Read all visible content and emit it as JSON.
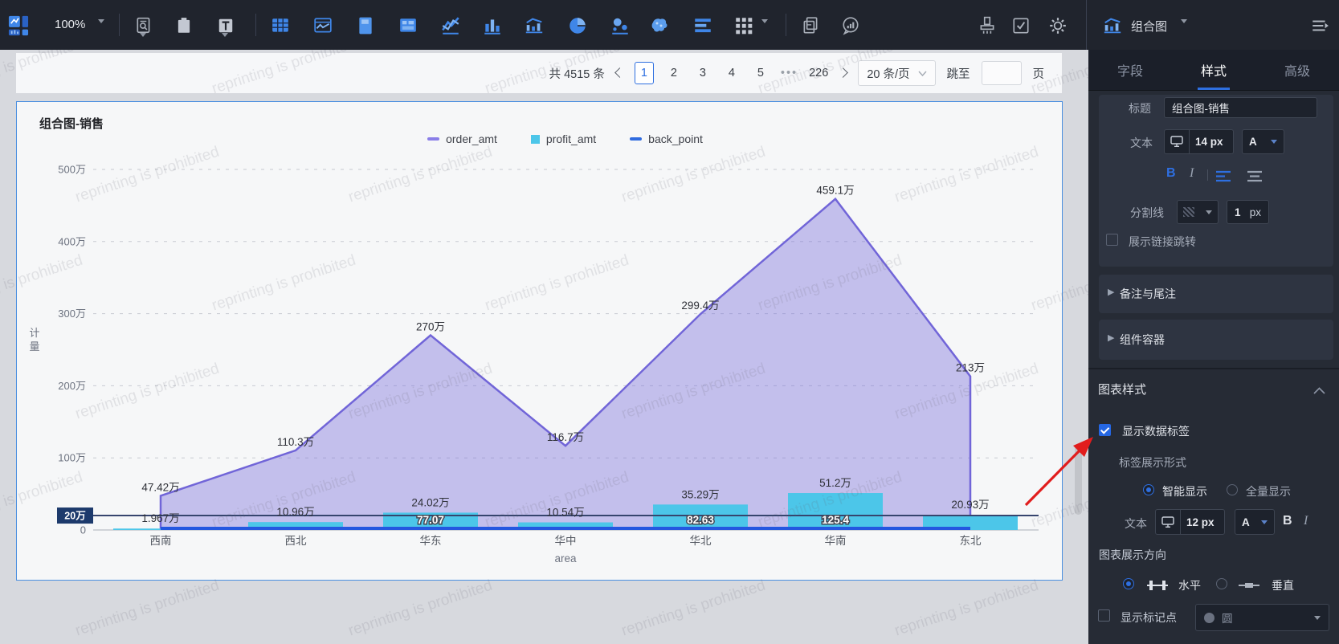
{
  "watermark": {
    "text": "reprinting is prohibited"
  },
  "topbar": {
    "zoom_level": "100%",
    "chart_type_label": "组合图",
    "icons": [
      "app-logo",
      "zoom-dropdown",
      "filter-search",
      "clipboard",
      "text-tool",
      "table",
      "chart-window",
      "page-layout",
      "dashboard",
      "line-chart",
      "bar-chart",
      "combo-chart",
      "combo-chart-alt",
      "pie-chart",
      "scatter-chart",
      "map-chart",
      "list-chart",
      "grid-more",
      "copy-doc",
      "comment",
      "brush",
      "todo-check",
      "gear",
      "chart-type-selector",
      "menu-collapse"
    ]
  },
  "pagination": {
    "total": "共 4515 条",
    "pages": [
      "1",
      "2",
      "3",
      "4",
      "5"
    ],
    "current_page": "1",
    "ellipsis": "•••",
    "last_page": "226",
    "page_size": "20 条/页",
    "jump_label": "跳至",
    "page_unit": "页"
  },
  "chart_data": {
    "type": "combo",
    "title": "组合图-销售",
    "xlabel": "area",
    "ylabel": "计量",
    "categories": [
      "西南",
      "西北",
      "华东",
      "华中",
      "华北",
      "华南",
      "东北"
    ],
    "yticks": [
      {
        "label": "500万",
        "value": 500
      },
      {
        "label": "400万",
        "value": 400
      },
      {
        "label": "300万",
        "value": 300
      },
      {
        "label": "200万",
        "value": 200
      },
      {
        "label": "100万",
        "value": 100
      }
    ],
    "zero_label": "0",
    "ylim_wan": [
      0,
      500
    ],
    "grid": true,
    "legend_position": "top",
    "series": [
      {
        "name": "order_amt",
        "type": "area",
        "color": "#7165d8",
        "fill": "rgba(124,114,220,0.42)",
        "values_wan": [
          47.42,
          110.3,
          270,
          116.7,
          299.4,
          459.1,
          213
        ],
        "labels": [
          "47.42万",
          "110.3万",
          "270万",
          "116.7万",
          "299.4万",
          "459.1万",
          "213万"
        ]
      },
      {
        "name": "profit_amt",
        "type": "bar",
        "color": "#4cc6e9",
        "values_wan": [
          1.967,
          10.96,
          24.02,
          10.54,
          35.29,
          51.2,
          20.93
        ],
        "labels": [
          "1.967万",
          "10.96万",
          "24.02万",
          "10.54万",
          "35.29万",
          "51.2万",
          "20.93万"
        ]
      },
      {
        "name": "back_point",
        "type": "line",
        "color": "#2457e0",
        "values": [
          null,
          null,
          77.07,
          null,
          82.63,
          125.4,
          null
        ],
        "labels": [
          null,
          null,
          "77.07",
          null,
          "82.63",
          "125.4",
          null
        ]
      }
    ],
    "markline": {
      "label": "20万",
      "value_wan": 20
    }
  },
  "panel": {
    "tabs": [
      {
        "label": "字段",
        "active": false
      },
      {
        "label": "样式",
        "active": true
      },
      {
        "label": "高级",
        "active": false
      }
    ],
    "title_row": {
      "label": "标题",
      "value": "组合图-销售"
    },
    "text_row": {
      "label": "文本",
      "size": "14 px",
      "color": "A"
    },
    "format_row": {
      "bold": "B",
      "italic": "I"
    },
    "divider_row": {
      "label": "分割线",
      "value": "1",
      "unit": "px"
    },
    "link_row": {
      "label": "展示链接跳转",
      "checked": false
    },
    "sections": [
      {
        "label": "备注与尾注"
      },
      {
        "label": "组件容器"
      }
    ],
    "chart_style_header": "图表样式",
    "show_labels": {
      "label": "显示数据标签",
      "checked": true
    },
    "label_form_label": "标签展示形式",
    "label_form_options": [
      {
        "label": "智能显示",
        "selected": true
      },
      {
        "label": "全量显示",
        "selected": false
      }
    ],
    "label_text_row": {
      "label": "文本",
      "size": "12 px",
      "color": "A",
      "bold": "B",
      "italic": "I"
    },
    "direction_label": "图表展示方向",
    "direction_options": [
      {
        "label": "水平",
        "selected": true
      },
      {
        "label": "垂直",
        "selected": false
      }
    ],
    "mark_row": {
      "label": "显示标记点",
      "checked": false,
      "value": "圆"
    }
  }
}
